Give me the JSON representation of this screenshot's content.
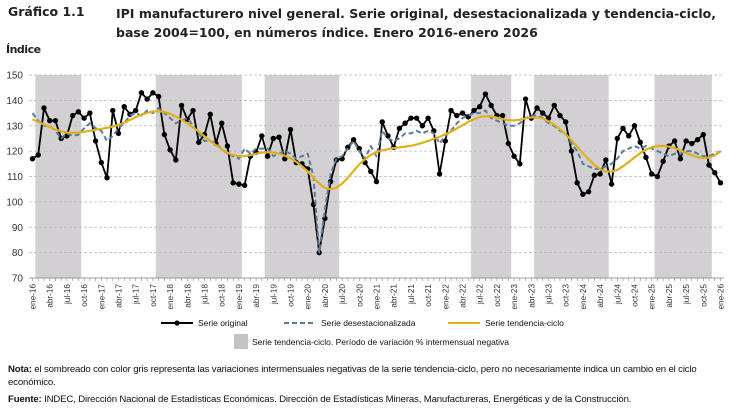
{
  "header": {
    "figure_label": "Gráfico 1.1",
    "title": "IPI manufacturero nivel general. Serie original, desestacionalizada y tendencia-ciclo, base 2004=100, en números índice. Enero 2016-enero 2026"
  },
  "colors": {
    "original": "#000000",
    "desestacionalizada": "#5b7a9e",
    "tendencia": "#e0b01c",
    "shading": "#d2d0d2",
    "grid": "#b8b8b8"
  },
  "chart_data": {
    "type": "line",
    "title": "IPI manufacturero nivel general. Serie original, desestacionalizada y tendencia-ciclo, base 2004=100, en números índice. Enero 2016-enero 2026",
    "xlabel": "",
    "ylabel": "Índice",
    "ylim": [
      70,
      150
    ],
    "yticks": [
      70,
      80,
      90,
      100,
      110,
      120,
      130,
      140,
      150
    ],
    "grid": true,
    "legend_position": "bottom",
    "x_tick_labels": [
      "ene-16",
      "abr-16",
      "jul-16",
      "oct-16",
      "ene-17",
      "abr-17",
      "jul-17",
      "oct-17",
      "ene-18",
      "abr-18",
      "jul-18",
      "oct-18",
      "ene-19",
      "abr-19",
      "jul-19",
      "oct-19",
      "ene-20",
      "abr-20",
      "jul-20",
      "oct-20",
      "ene-21",
      "abr-21",
      "jul-21",
      "oct-21",
      "ene-22",
      "abr-22",
      "jul-22",
      "oct-22",
      "ene-23",
      "abr-23",
      "jul-23",
      "oct-23",
      "ene-24",
      "abr-24",
      "jul-24",
      "oct-24",
      "ene-25",
      "abr-25",
      "jul-25",
      "oct-25",
      "ene-26"
    ],
    "x_start": "ene-16",
    "x_end": "ene-26",
    "n_months": 121,
    "shaded_periods": [
      {
        "from_month_index": 1,
        "to_month_index": 8
      },
      {
        "from_month_index": 22,
        "to_month_index": 36
      },
      {
        "from_month_index": 41,
        "to_month_index": 53
      },
      {
        "from_month_index": 77,
        "to_month_index": 83
      },
      {
        "from_month_index": 88,
        "to_month_index": 100
      },
      {
        "from_month_index": 109,
        "to_month_index": 118
      }
    ],
    "shading_legend": "Serie tendencia-ciclo. Período de variación % intermensual negativa",
    "series": [
      {
        "name": "Serie original",
        "style": "line-markers",
        "values": [
          117,
          118.5,
          137,
          132,
          132,
          125,
          126,
          134,
          135.5,
          133,
          135,
          124,
          115.5,
          109.5,
          136,
          127,
          137.5,
          134.5,
          136,
          143,
          140.5,
          143,
          141.5,
          126.5,
          120.5,
          116.5,
          138,
          132.5,
          136,
          123.5,
          126.5,
          134.5,
          123,
          131,
          122,
          107.5,
          107,
          106.5,
          118,
          119.5,
          126,
          118,
          125,
          125.5,
          117,
          128.5,
          115.5,
          115,
          113,
          99,
          80,
          93.5,
          108,
          116.5,
          117,
          121.5,
          124.5,
          121,
          115.5,
          112,
          108,
          131.5,
          126,
          121.5,
          129,
          131,
          133,
          133,
          130,
          133,
          128,
          111,
          124,
          136,
          134,
          135,
          133.5,
          136,
          137.5,
          142.5,
          138,
          134,
          134,
          123,
          118,
          115,
          140.5,
          133,
          137,
          135,
          133,
          138,
          134,
          131.5,
          120,
          107.5,
          103,
          104,
          110.5,
          111,
          116.5,
          107,
          125,
          129,
          126,
          130,
          123.5,
          117.5,
          111,
          110,
          116,
          122,
          124,
          117,
          124,
          123,
          124.5,
          126.5,
          114.5,
          111.5,
          107.5
        ]
      },
      {
        "name": "Serie desestacionalizada",
        "style": "dashed",
        "values": [
          135,
          132,
          130,
          130,
          128,
          125,
          127,
          126,
          126.5,
          129,
          131,
          129,
          128,
          124,
          126,
          129,
          131,
          134,
          135,
          134,
          136,
          135,
          137,
          135,
          133,
          131,
          132,
          133,
          130,
          127,
          124,
          124,
          123,
          121,
          119,
          118,
          117,
          121,
          119,
          121,
          121,
          121,
          118,
          119,
          120,
          119,
          117,
          118,
          119,
          110,
          80,
          97,
          111,
          117,
          118,
          121,
          124,
          120,
          117,
          122,
          118,
          128,
          125,
          124,
          125,
          127,
          127,
          128,
          127,
          128,
          127,
          123,
          126,
          128,
          131,
          133,
          134,
          135,
          135,
          136,
          133,
          132,
          131,
          130,
          130,
          131,
          133,
          134,
          134,
          133,
          131,
          130,
          128,
          127,
          123,
          120,
          115,
          114,
          113,
          113,
          114,
          115,
          117,
          120,
          121,
          122,
          121,
          122,
          121,
          120,
          119,
          118,
          119,
          119,
          120,
          120,
          119,
          118,
          118,
          119,
          120
        ]
      },
      {
        "name": "Serie tendencia-ciclo",
        "style": "solid",
        "values": [
          132.5,
          131.5,
          130.5,
          129.5,
          128.5,
          127.8,
          127.3,
          127.2,
          127.3,
          127.6,
          128,
          128.4,
          128.8,
          129.2,
          129.7,
          130.3,
          131.2,
          132.3,
          133.4,
          134.4,
          135.1,
          135.6,
          135.7,
          135.4,
          134.7,
          133.6,
          132.4,
          131,
          129.4,
          127.6,
          125.8,
          124,
          122.3,
          120.8,
          119.4,
          118.4,
          118,
          118,
          118.4,
          119,
          119.4,
          119.6,
          119.4,
          119,
          118.2,
          117.2,
          115.8,
          114,
          112,
          109.5,
          107.2,
          105.5,
          105,
          105.6,
          107.2,
          109.5,
          112.2,
          114.8,
          116.8,
          118.5,
          119.6,
          120.3,
          120.8,
          121.2,
          121.5,
          121.8,
          122.1,
          122.6,
          123.3,
          124,
          124.8,
          125.6,
          126.6,
          127.7,
          128.9,
          130.2,
          131.5,
          132.6,
          133.4,
          133.8,
          133.7,
          133.2,
          132.6,
          132.2,
          132.1,
          132.4,
          132.9,
          133.3,
          133.3,
          132.8,
          131.8,
          130.4,
          128.6,
          126.6,
          124.3,
          121.8,
          119.2,
          116.8,
          114.6,
          112.9,
          112,
          111.9,
          112.6,
          114,
          115.7,
          117.5,
          119.2,
          120.6,
          121.5,
          122,
          122.1,
          121.8,
          121.2,
          120.3,
          119.3,
          118.4,
          117.7,
          117.3,
          117.5,
          118.3,
          119.8
        ]
      }
    ]
  },
  "legend": {
    "original": "Serie original",
    "desestacionalizada": "Serie desestacionalizada",
    "tendencia": "Serie tendencia-ciclo",
    "shading": "Serie tendencia-ciclo. Período de variación % intermensual negativa"
  },
  "footer": {
    "note_label": "Nota:",
    "note_text": " el sombreado con color gris representa las variaciones intermensuales negativas de la serie tendencia-ciclo, pero no necesariamente indica un cambio en el ciclo económico.",
    "source_label": "Fuente:",
    "source_text": " INDEC, Dirección Nacional de Estadísticas Económicas. Dirección de Estadísticas Mineras, Manufactureras, Energéticas y de la Construcción."
  }
}
